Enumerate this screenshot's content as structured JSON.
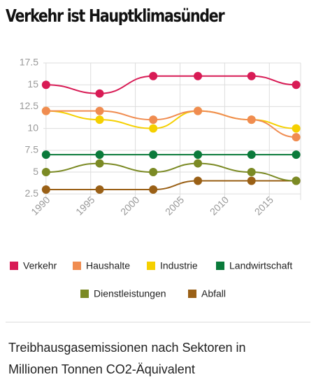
{
  "chart_data": {
    "type": "line",
    "title": "Verkehr ist Hauptklimasünder",
    "subtitle": "Treibhausgasemissionen nach Sektoren in Millionen Tonnen CO2-Äquivalent",
    "x": [
      1990,
      1996,
      2002,
      2007,
      2013,
      2018
    ],
    "xlim": [
      1989.7,
      2018.5
    ],
    "xticks": [
      1990,
      1995,
      2000,
      2005,
      2010,
      2015
    ],
    "ylim": [
      1.8,
      17.5
    ],
    "yticks": [
      2.5,
      5,
      7.5,
      10,
      12.5,
      15,
      17.5
    ],
    "grid": true,
    "legend": "bottom",
    "series": [
      {
        "name": "Verkehr",
        "color": "#d81b55",
        "values": [
          15,
          14,
          16,
          16,
          16,
          15
        ]
      },
      {
        "name": "Haushalte",
        "color": "#f08c50",
        "values": [
          12,
          12,
          11,
          12,
          11,
          9
        ]
      },
      {
        "name": "Industrie",
        "color": "#f5d000",
        "values": [
          12,
          11,
          10,
          12,
          11,
          10
        ]
      },
      {
        "name": "Landwirtschaft",
        "color": "#0a7a3a",
        "values": [
          7,
          7,
          7,
          7,
          7,
          7
        ]
      },
      {
        "name": "Dienstleistungen",
        "color": "#7b8a24",
        "values": [
          5,
          6,
          5,
          6,
          5,
          4
        ]
      },
      {
        "name": "Abfall",
        "color": "#9a6016",
        "values": [
          3,
          3,
          3,
          4,
          4,
          4
        ]
      }
    ]
  }
}
